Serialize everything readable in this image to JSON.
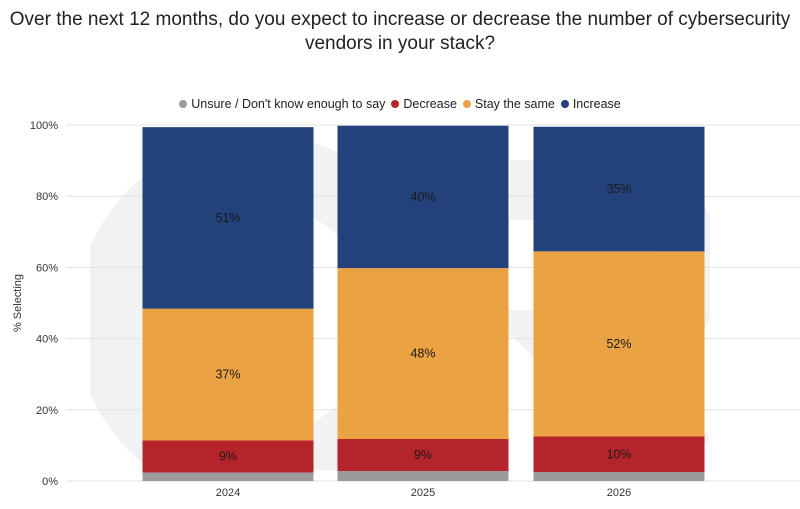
{
  "chart_data": {
    "type": "bar",
    "stacked": true,
    "title_lines": [
      "Over the next 12 months, do you expect to increase or decrease the number of cybersecurity",
      "vendors in your stack?"
    ],
    "ylabel": "% Selecting",
    "xlabel": "",
    "ylim": [
      0,
      100
    ],
    "y_ticks": [
      "0%",
      "20%",
      "40%",
      "60%",
      "80%",
      "100%"
    ],
    "y_tick_values": [
      0,
      20,
      40,
      60,
      80,
      100
    ],
    "categories": [
      "2024",
      "2025",
      "2026"
    ],
    "legend_position": "top-center",
    "series": [
      {
        "name": "Unsure / Don't know enough to say",
        "color": "#9b9b9b",
        "values": [
          2.4,
          2.8,
          2.5
        ],
        "labels": [
          "",
          "",
          ""
        ]
      },
      {
        "name": "Decrease",
        "color": "#b5242a",
        "values": [
          9,
          9,
          10
        ],
        "labels": [
          "9%",
          "9%",
          "10%"
        ]
      },
      {
        "name": "Stay the same",
        "color": "#eba243",
        "values": [
          37,
          48,
          52
        ],
        "labels": [
          "37%",
          "48%",
          "52%"
        ]
      },
      {
        "name": "Increase",
        "color": "#23427b",
        "values": [
          51,
          40,
          35
        ],
        "labels": [
          "51%",
          "40%",
          "35%"
        ]
      }
    ],
    "legend_order": [
      0,
      1,
      2,
      3
    ]
  }
}
